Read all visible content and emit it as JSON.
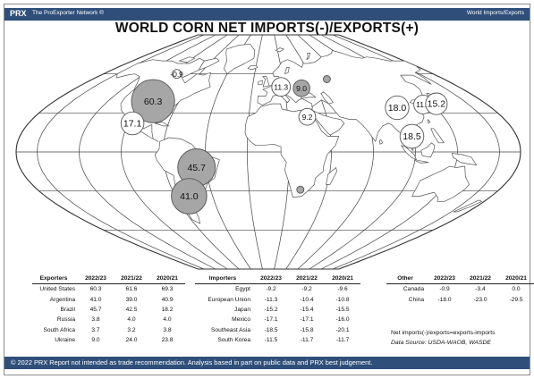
{
  "header": {
    "brand": "PRX",
    "network": "The ProExporter Network ®",
    "section": "World Imports/Exports"
  },
  "title": "WORLD CORN NET IMPORTS(-)/EXPORTS(+)",
  "colors": {
    "bar": "#2f4f7a",
    "exporter_bubble": "#a6a6a6",
    "importer_bubble": "#ffffff",
    "land": "#ffffff",
    "outline": "#555555"
  },
  "chart_data": {
    "type": "bubble-map",
    "title": "WORLD CORN NET IMPORTS(-)/EXPORTS(+)",
    "marketing_year": "2022/23",
    "bubbles": [
      {
        "label": "60.3",
        "value": 60.3,
        "country": "United States",
        "kind": "exporter",
        "lon": -97,
        "lat": 39
      },
      {
        "label": "45.7",
        "value": 45.7,
        "country": "Brazil",
        "kind": "exporter",
        "lon": -52,
        "lat": -12
      },
      {
        "label": "41.0",
        "value": 41.0,
        "country": "Argentina",
        "kind": "exporter",
        "lon": -64,
        "lat": -34
      },
      {
        "label": "9.0",
        "value": 9.0,
        "country": "Ukraine",
        "kind": "exporter",
        "lon": 31,
        "lat": 49
      },
      {
        "label": "17.1",
        "value": 17.1,
        "country": "Mexico",
        "kind": "importer",
        "lon": -102,
        "lat": 22
      },
      {
        "label": "11.3",
        "value": 11.3,
        "country": "European Union",
        "kind": "importer",
        "lon": 12,
        "lat": 50
      },
      {
        "label": "9.2",
        "value": 9.2,
        "country": "Egypt",
        "kind": "importer",
        "lon": 30,
        "lat": 27
      },
      {
        "label": "18.0",
        "value": 18.0,
        "country": "China",
        "kind": "importer",
        "lon": 104,
        "lat": 34
      },
      {
        "label": "11.5",
        "value": 11.5,
        "country": "South Korea",
        "kind": "importer",
        "lon": 127.5,
        "lat": 36.5
      },
      {
        "label": "15.2",
        "value": 15.2,
        "country": "Japan",
        "kind": "importer",
        "lon": 139,
        "lat": 37
      },
      {
        "label": "18.5",
        "value": 18.5,
        "country": "Southeast Asia",
        "kind": "importer",
        "lon": 104,
        "lat": 12
      },
      {
        "label": "-0.9",
        "value": -0.9,
        "country": "Canada",
        "kind": "importer",
        "lon": -100,
        "lat": 60
      },
      {
        "label": "",
        "value": 3.8,
        "country": "Russia",
        "kind": "exporter",
        "lon": 60,
        "lat": 56
      },
      {
        "label": "",
        "value": 3.7,
        "country": "South Africa",
        "kind": "exporter",
        "lon": 25,
        "lat": -29
      }
    ]
  },
  "tables": {
    "years": [
      "2022/23",
      "2021/22",
      "2020/21"
    ],
    "exporters": {
      "heading": "Exporters",
      "rows": [
        {
          "name": "United States",
          "v": [
            "60.3",
            "61.6",
            "69.3"
          ]
        },
        {
          "name": "Argentina",
          "v": [
            "41.0",
            "39.0",
            "40.9"
          ]
        },
        {
          "name": "Brazil",
          "v": [
            "45.7",
            "42.5",
            "18.2"
          ]
        },
        {
          "name": "Russia",
          "v": [
            "3.8",
            "4.0",
            "4.0"
          ]
        },
        {
          "name": "South Africa",
          "v": [
            "3.7",
            "3.2",
            "3.8"
          ]
        },
        {
          "name": "Ukraine",
          "v": [
            "9.0",
            "24.0",
            "23.8"
          ]
        }
      ]
    },
    "importers": {
      "heading": "Importers",
      "rows": [
        {
          "name": "Egypt",
          "v": [
            "-9.2",
            "-9.2",
            "-9.6"
          ]
        },
        {
          "name": "European Union",
          "v": [
            "-11.3",
            "-10.4",
            "-10.8"
          ]
        },
        {
          "name": "Japan",
          "v": [
            "-15.2",
            "-15.4",
            "-15.5"
          ]
        },
        {
          "name": "Mexico",
          "v": [
            "-17.1",
            "-17.1",
            "-16.0"
          ]
        },
        {
          "name": "Southeast Asia",
          "v": [
            "-18.5",
            "-15.8",
            "-20.1"
          ]
        },
        {
          "name": "South Korea",
          "v": [
            "-11.5",
            "-11.7",
            "-11.7"
          ]
        }
      ]
    },
    "other": {
      "heading": "Other",
      "rows": [
        {
          "name": "Canada",
          "v": [
            "-0.9",
            "-3.4",
            "0.0"
          ]
        },
        {
          "name": "China",
          "v": [
            "-18.0",
            "-23.0",
            "-29.5"
          ]
        }
      ]
    }
  },
  "notes": {
    "legend": "Net imports(-)/exports=exports-imports",
    "source": "Data Source: USDA-WAOB, WASDE"
  },
  "footer": {
    "text": "© 2022 PRX   Report not intended as trade recommendation. Analysis based in part on public data and PRX best judgement."
  }
}
